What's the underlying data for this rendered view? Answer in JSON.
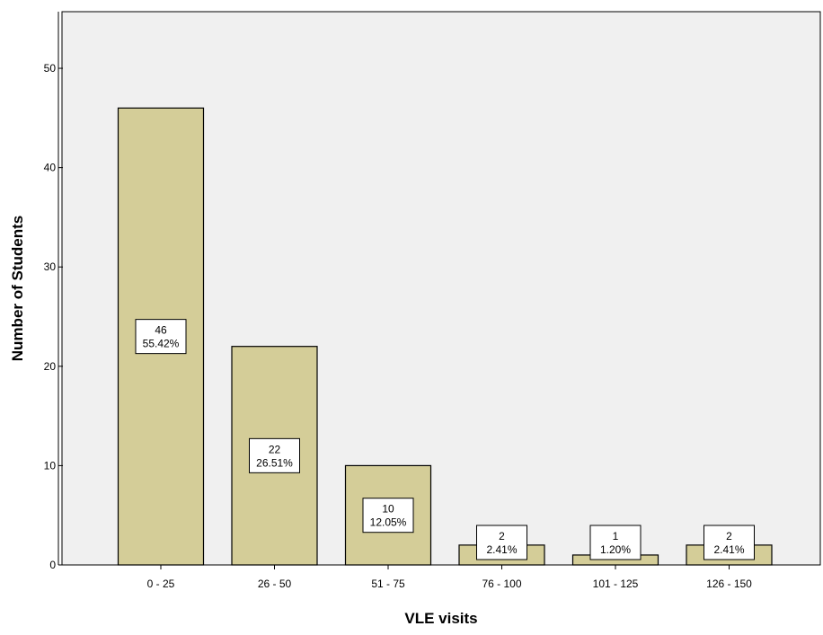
{
  "colors": {
    "bar_fill": "#d4cd98",
    "plot_bg": "#f0f0f0",
    "stroke": "#000000",
    "label_bg": "#ffffff"
  },
  "chart_data": {
    "type": "bar",
    "title": "",
    "xlabel": "VLE visits",
    "ylabel": "Number of Students",
    "categories": [
      "0 - 25",
      "26 - 50",
      "51 - 75",
      "76 - 100",
      "101 - 125",
      "126 - 150"
    ],
    "values": [
      46,
      22,
      10,
      2,
      1,
      2
    ],
    "data_labels": [
      {
        "count": "46",
        "percent": "55.42%"
      },
      {
        "count": "22",
        "percent": "26.51%"
      },
      {
        "count": "10",
        "percent": "12.05%"
      },
      {
        "count": "2",
        "percent": "2.41%"
      },
      {
        "count": "1",
        "percent": "1.20%"
      },
      {
        "count": "2",
        "percent": "2.41%"
      }
    ],
    "ylim": [
      0,
      55.7
    ],
    "yticks": [
      0,
      10,
      20,
      30,
      40,
      50
    ],
    "grid": false,
    "legend": "none"
  }
}
